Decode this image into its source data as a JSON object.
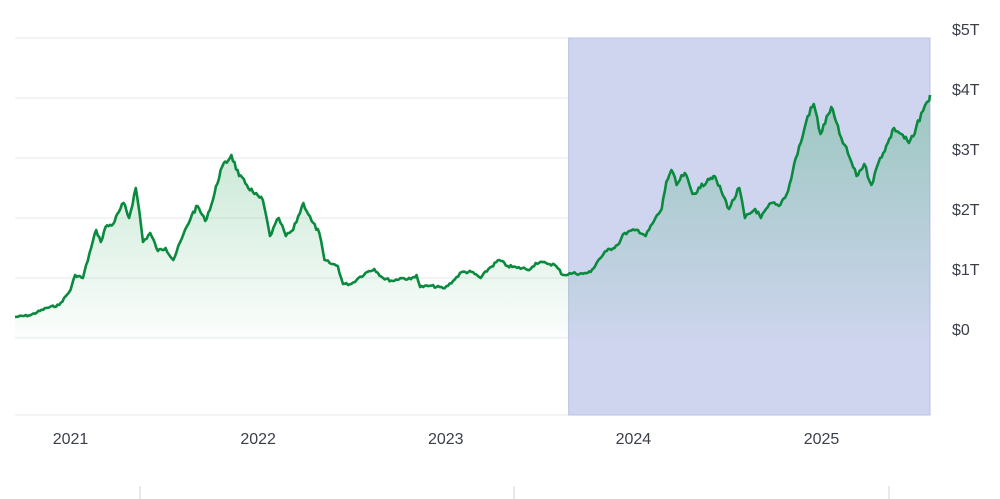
{
  "chart_data": {
    "type": "area",
    "title": "",
    "xlabel": "",
    "ylabel": "",
    "y_ticks": [
      "$0",
      "$1T",
      "$2T",
      "$3T",
      "$4T",
      "$5T"
    ],
    "x_ticks": [
      "2021",
      "2022",
      "2023",
      "2024",
      "2025"
    ],
    "ylim": [
      -1.3,
      5.0
    ],
    "grid": true,
    "highlight_range": [
      "2023-08-28",
      "2025-07-31"
    ],
    "colors": {
      "line": "#0a8a3e",
      "area_top": "#3fae6a",
      "highlight": "#ccd3ee",
      "grid": "#e6e8ee",
      "tick_text": "#3a3f4a"
    },
    "series": [
      {
        "unit": "USD trillions",
        "points": [
          [
            "2020-09-15",
            0.35
          ],
          [
            "2020-10-15",
            0.38
          ],
          [
            "2020-11-15",
            0.5
          ],
          [
            "2020-12-10",
            0.55
          ],
          [
            "2021-01-01",
            0.8
          ],
          [
            "2021-01-10",
            1.05
          ],
          [
            "2021-01-25",
            1.0
          ],
          [
            "2021-02-10",
            1.5
          ],
          [
            "2021-02-20",
            1.8
          ],
          [
            "2021-03-01",
            1.6
          ],
          [
            "2021-03-10",
            1.85
          ],
          [
            "2021-03-25",
            1.9
          ],
          [
            "2021-04-05",
            2.1
          ],
          [
            "2021-04-14",
            2.25
          ],
          [
            "2021-04-25",
            2.0
          ],
          [
            "2021-05-08",
            2.5
          ],
          [
            "2021-05-15",
            2.1
          ],
          [
            "2021-05-22",
            1.6
          ],
          [
            "2021-06-05",
            1.75
          ],
          [
            "2021-06-20",
            1.45
          ],
          [
            "2021-07-05",
            1.5
          ],
          [
            "2021-07-20",
            1.3
          ],
          [
            "2021-08-05",
            1.65
          ],
          [
            "2021-08-25",
            2.05
          ],
          [
            "2021-09-05",
            2.2
          ],
          [
            "2021-09-20",
            1.95
          ],
          [
            "2021-10-05",
            2.3
          ],
          [
            "2021-10-20",
            2.8
          ],
          [
            "2021-11-10",
            3.05
          ],
          [
            "2021-11-25",
            2.7
          ],
          [
            "2021-12-10",
            2.55
          ],
          [
            "2021-12-25",
            2.4
          ],
          [
            "2022-01-10",
            2.3
          ],
          [
            "2022-01-24",
            1.7
          ],
          [
            "2022-02-10",
            2.0
          ],
          [
            "2022-02-24",
            1.7
          ],
          [
            "2022-03-10",
            1.8
          ],
          [
            "2022-03-30",
            2.25
          ],
          [
            "2022-04-15",
            1.95
          ],
          [
            "2022-04-30",
            1.75
          ],
          [
            "2022-05-10",
            1.3
          ],
          [
            "2022-05-20",
            1.25
          ],
          [
            "2022-06-05",
            1.2
          ],
          [
            "2022-06-15",
            0.9
          ],
          [
            "2022-07-01",
            0.9
          ],
          [
            "2022-07-15",
            1.0
          ],
          [
            "2022-08-01",
            1.1
          ],
          [
            "2022-08-15",
            1.15
          ],
          [
            "2022-09-01",
            1.0
          ],
          [
            "2022-09-20",
            0.95
          ],
          [
            "2022-10-05",
            1.0
          ],
          [
            "2022-10-25",
            0.98
          ],
          [
            "2022-11-05",
            1.05
          ],
          [
            "2022-11-12",
            0.85
          ],
          [
            "2022-12-01",
            0.87
          ],
          [
            "2022-12-30",
            0.83
          ],
          [
            "2023-01-15",
            0.95
          ],
          [
            "2023-02-01",
            1.1
          ],
          [
            "2023-02-20",
            1.1
          ],
          [
            "2023-03-10",
            1.0
          ],
          [
            "2023-03-25",
            1.15
          ],
          [
            "2023-04-15",
            1.3
          ],
          [
            "2023-05-01",
            1.2
          ],
          [
            "2023-05-20",
            1.17
          ],
          [
            "2023-06-15",
            1.15
          ],
          [
            "2023-06-25",
            1.25
          ],
          [
            "2023-07-15",
            1.25
          ],
          [
            "2023-08-01",
            1.22
          ],
          [
            "2023-08-17",
            1.05
          ],
          [
            "2023-09-05",
            1.08
          ],
          [
            "2023-09-25",
            1.07
          ],
          [
            "2023-10-10",
            1.1
          ],
          [
            "2023-10-25",
            1.3
          ],
          [
            "2023-11-10",
            1.45
          ],
          [
            "2023-12-01",
            1.55
          ],
          [
            "2023-12-15",
            1.75
          ],
          [
            "2024-01-10",
            1.8
          ],
          [
            "2024-01-25",
            1.7
          ],
          [
            "2024-02-10",
            1.95
          ],
          [
            "2024-02-25",
            2.15
          ],
          [
            "2024-03-05",
            2.6
          ],
          [
            "2024-03-15",
            2.8
          ],
          [
            "2024-03-25",
            2.55
          ],
          [
            "2024-04-10",
            2.75
          ],
          [
            "2024-04-25",
            2.4
          ],
          [
            "2024-05-10",
            2.5
          ],
          [
            "2024-05-25",
            2.65
          ],
          [
            "2024-06-05",
            2.7
          ],
          [
            "2024-06-20",
            2.45
          ],
          [
            "2024-07-05",
            2.15
          ],
          [
            "2024-07-25",
            2.5
          ],
          [
            "2024-08-05",
            2.0
          ],
          [
            "2024-08-25",
            2.15
          ],
          [
            "2024-09-05",
            2.0
          ],
          [
            "2024-09-25",
            2.25
          ],
          [
            "2024-10-10",
            2.2
          ],
          [
            "2024-10-28",
            2.45
          ],
          [
            "2024-11-12",
            3.0
          ],
          [
            "2024-11-25",
            3.35
          ],
          [
            "2024-12-05",
            3.7
          ],
          [
            "2024-12-17",
            3.9
          ],
          [
            "2024-12-30",
            3.4
          ],
          [
            "2025-01-20",
            3.85
          ],
          [
            "2025-02-05",
            3.4
          ],
          [
            "2025-02-25",
            3.0
          ],
          [
            "2025-03-10",
            2.7
          ],
          [
            "2025-03-25",
            2.9
          ],
          [
            "2025-04-08",
            2.55
          ],
          [
            "2025-04-25",
            3.0
          ],
          [
            "2025-05-10",
            3.25
          ],
          [
            "2025-05-22",
            3.5
          ],
          [
            "2025-06-05",
            3.4
          ],
          [
            "2025-06-20",
            3.25
          ],
          [
            "2025-07-01",
            3.4
          ],
          [
            "2025-07-14",
            3.75
          ],
          [
            "2025-07-28",
            3.95
          ],
          [
            "2025-07-31",
            4.05
          ]
        ]
      }
    ]
  }
}
